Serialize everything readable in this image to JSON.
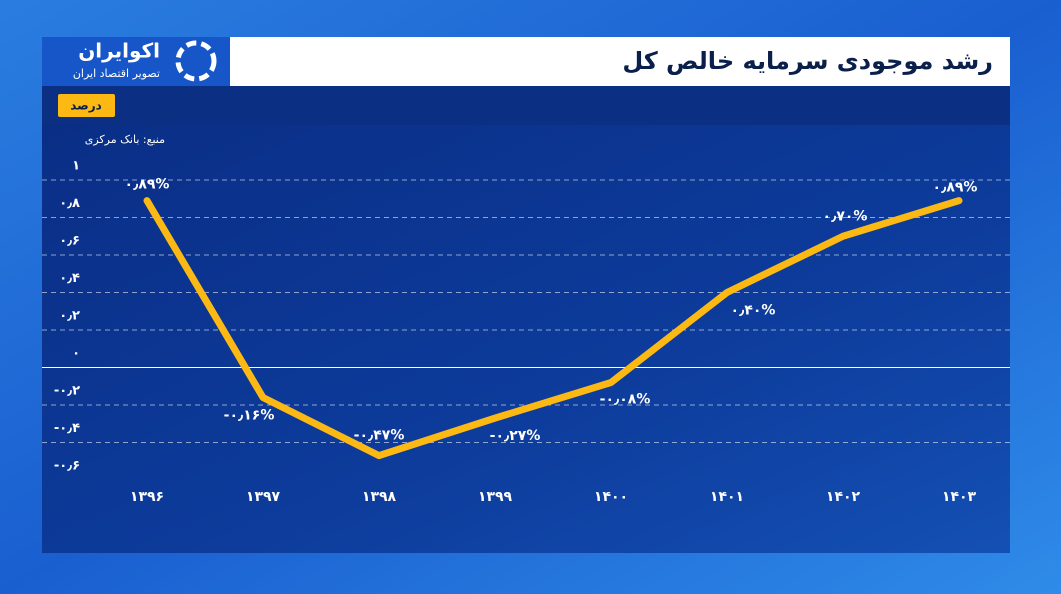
{
  "brand": {
    "name": "اکوایران",
    "tagline": "تصویر اقتصاد ایران"
  },
  "chart_data": {
    "type": "line",
    "title": "رشد موجودی سرمایه خالص کل",
    "y_label": "درصد",
    "source": "منبع: بانک مرکزی",
    "categories": [
      "۱۳۹۶",
      "۱۳۹۷",
      "۱۳۹۸",
      "۱۳۹۹",
      "۱۴۰۰",
      "۱۴۰۱",
      "۱۴۰۲",
      "۱۴۰۳"
    ],
    "series": [
      {
        "name": "رشد موجودی سرمایه خالص کل",
        "color": "#fdb913",
        "values": [
          0.89,
          -0.16,
          -0.47,
          -0.27,
          -0.08,
          0.4,
          0.7,
          0.89
        ],
        "value_labels": [
          "۰٫۸۹%",
          "-۰٫۱۶%",
          "-۰٫۴۷%",
          "-۰٫۲۷%",
          "-۰٫۰۸%",
          "۰٫۴۰%",
          "۰٫۷۰%",
          "۰٫۸۹%"
        ]
      }
    ],
    "ylim": [
      -0.6,
      1
    ],
    "yticks": [
      {
        "value": 1,
        "label": "۱"
      },
      {
        "value": 0.8,
        "label": "۰٫۸"
      },
      {
        "value": 0.6,
        "label": "۰٫۶"
      },
      {
        "value": 0.4,
        "label": "۰٫۴"
      },
      {
        "value": 0.2,
        "label": "۰٫۲"
      },
      {
        "value": 0,
        "label": "۰"
      },
      {
        "value": -0.2,
        "label": "-۰٫۲"
      },
      {
        "value": -0.4,
        "label": "-۰٫۴"
      },
      {
        "value": -0.6,
        "label": "-۰٫۶"
      }
    ],
    "grid": true
  }
}
